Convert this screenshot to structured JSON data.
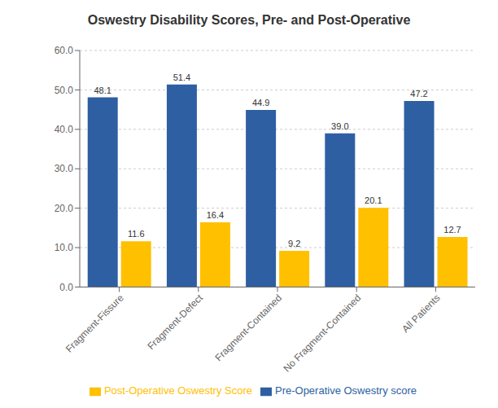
{
  "chart_data": {
    "type": "bar",
    "title": "Oswestry Disability Scores, Pre- and Post-Operative",
    "categories": [
      "Fragment-Fissure",
      "Fragment-Defect",
      "Fragment-Contained",
      "No Fragment-Contained",
      "All Patients"
    ],
    "series": [
      {
        "name": "Pre-Operative Oswestry score",
        "color": "#2E5FA3",
        "values": [
          48.1,
          51.4,
          44.9,
          39.0,
          47.2
        ],
        "value_labels": [
          "48.1",
          "51.4",
          "44.9",
          "39.0",
          "47.2"
        ]
      },
      {
        "name": "Post-Operative Oswestry Score",
        "color": "#FFC000",
        "values": [
          11.6,
          16.4,
          9.2,
          20.1,
          12.7
        ],
        "value_labels": [
          "11.6",
          "16.4",
          "9.2",
          "20.1",
          "12.7"
        ]
      }
    ],
    "ylim": [
      0,
      60
    ],
    "yticks": [
      {
        "value": 0,
        "label": "0.0"
      },
      {
        "value": 10,
        "label": "10.0"
      },
      {
        "value": 20,
        "label": "20.0"
      },
      {
        "value": 30,
        "label": "30.0"
      },
      {
        "value": 40,
        "label": "40.0"
      },
      {
        "value": 50,
        "label": "50.0"
      },
      {
        "value": 60,
        "label": "60.0"
      }
    ],
    "grid": true,
    "legend": "bottom",
    "data_labels": true
  }
}
